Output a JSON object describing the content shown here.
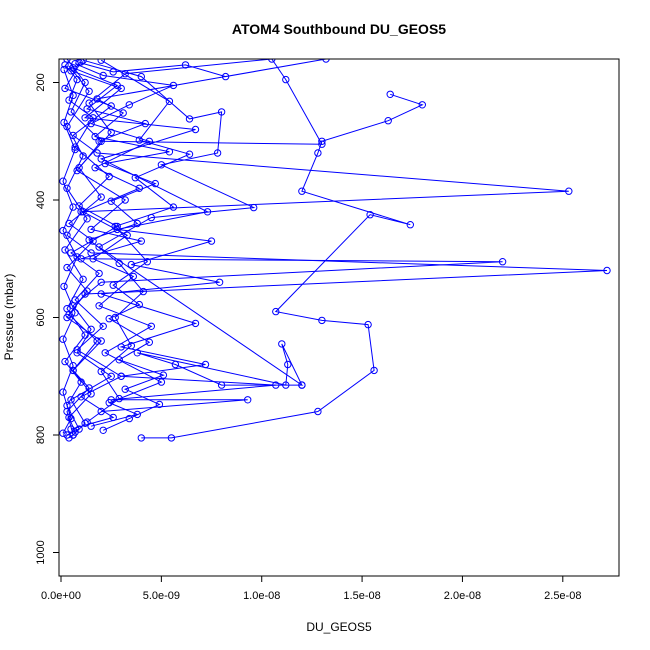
{
  "chart_data": {
    "type": "line",
    "title": "ATOM4 Southbound DU_GEOS5",
    "xlabel": "DU_GEOS5",
    "ylabel": "Pressure (mbar)",
    "xlim": [
      -1e-10,
      2.78e-08
    ],
    "ylim": [
      1040,
      160
    ],
    "y_reversed": true,
    "grid": false,
    "legend": "none",
    "color": "#0000ff",
    "marker": "open-circle",
    "xticks": [
      0,
      5e-09,
      1e-08,
      1.5e-08,
      2e-08,
      2.5e-08
    ],
    "xtick_labels": [
      "0.0e+00",
      "5.0e-09",
      "1.0e-08",
      "1.5e-08",
      "2.0e-08",
      "2.5e-08"
    ],
    "yticks": [
      200,
      400,
      600,
      800,
      1000
    ],
    "ytick_labels": [
      "200",
      "400",
      "600",
      "800",
      "1000"
    ],
    "series": [
      {
        "values": [
          [
            3e-10,
            160
          ],
          [
            1.2e-09,
            200
          ],
          [
            5e-10,
            250
          ],
          [
            2e-09,
            300
          ],
          [
            8e-10,
            350
          ],
          [
            3.2e-09,
            400
          ],
          [
            1.5e-09,
            450
          ],
          [
            4e-09,
            470
          ],
          [
            1e-09,
            500
          ],
          [
            2.2e-08,
            505
          ],
          [
            2e-09,
            540
          ],
          [
            6e-10,
            580
          ],
          [
            1.5e-09,
            620
          ],
          [
            8e-10,
            660
          ],
          [
            2.5e-09,
            700
          ],
          [
            5e-10,
            740
          ],
          [
            1.2e-09,
            780
          ],
          [
            6e-10,
            800
          ]
        ]
      },
      {
        "values": [
          [
            1e-09,
            165
          ],
          [
            2e-10,
            210
          ],
          [
            2.5e-09,
            240
          ],
          [
            6e-10,
            290
          ],
          [
            1.8e-09,
            320
          ],
          [
            2.53e-08,
            385
          ],
          [
            1e-09,
            420
          ],
          [
            3e-10,
            460
          ],
          [
            1.5e-09,
            490
          ],
          [
            2.72e-08,
            520
          ],
          [
            1.2e-09,
            560
          ],
          [
            3e-10,
            600
          ],
          [
            2e-09,
            640
          ],
          [
            6e-10,
            690
          ],
          [
            1.4e-09,
            720
          ],
          [
            3e-10,
            760
          ],
          [
            6e-10,
            800
          ],
          [
            4e-10,
            805
          ]
        ]
      },
      {
        "values": [
          [
            1.64e-08,
            220
          ],
          [
            1.8e-08,
            238
          ],
          [
            1.63e-08,
            265
          ],
          [
            1.3e-08,
            300
          ],
          [
            1.28e-08,
            320
          ],
          [
            1.2e-08,
            385
          ],
          [
            1.74e-08,
            442
          ],
          [
            1.54e-08,
            425
          ],
          [
            1.07e-08,
            590
          ],
          [
            1.3e-08,
            605
          ],
          [
            1.53e-08,
            612
          ],
          [
            1.56e-08,
            690
          ],
          [
            1.28e-08,
            760
          ],
          [
            5.5e-09,
            805
          ],
          [
            4e-09,
            805
          ]
        ]
      },
      {
        "values": [
          [
            5e-10,
            180
          ],
          [
            3e-09,
            210
          ],
          [
            1.2e-09,
            260
          ],
          [
            6.7e-09,
            280
          ],
          [
            2e-09,
            330
          ],
          [
            7.3e-09,
            420
          ],
          [
            2.8e-09,
            450
          ],
          [
            7.5e-09,
            470
          ],
          [
            3.5e-09,
            510
          ],
          [
            7.9e-09,
            540
          ],
          [
            2e-09,
            560
          ],
          [
            6.7e-09,
            610
          ],
          [
            3e-09,
            650
          ],
          [
            7.2e-09,
            680
          ],
          [
            3e-09,
            700
          ],
          [
            1.07e-08,
            715
          ],
          [
            2.5e-09,
            740
          ],
          [
            9.3e-09,
            740
          ],
          [
            2e-09,
            760
          ]
        ]
      },
      {
        "values": [
          [
            2e-10,
            170
          ],
          [
            8e-10,
            195
          ],
          [
            4e-10,
            230
          ],
          [
            1.6e-09,
            260
          ],
          [
            7e-10,
            310
          ],
          [
            2.4e-09,
            360
          ],
          [
            9e-10,
            410
          ],
          [
            2.8e-09,
            445
          ],
          [
            5e-10,
            490
          ],
          [
            1.9e-09,
            525
          ],
          [
            7e-10,
            570
          ],
          [
            2.1e-09,
            615
          ],
          [
            8e-10,
            655
          ],
          [
            3e-09,
            700
          ],
          [
            1e-09,
            735
          ],
          [
            2.6e-09,
            770
          ],
          [
            5e-10,
            790
          ]
        ]
      },
      {
        "values": [
          [
            1.1e-09,
            162
          ],
          [
            4e-09,
            190
          ],
          [
            6.4e-09,
            262
          ],
          [
            8e-09,
            250
          ],
          [
            7.8e-09,
            320
          ],
          [
            5e-09,
            340
          ],
          [
            9.6e-09,
            413
          ],
          [
            4.5e-09,
            430
          ],
          [
            1.9e-09,
            480
          ],
          [
            1.2e-08,
            715
          ],
          [
            8e-09,
            715
          ],
          [
            5.7e-09,
            680
          ],
          [
            3.8e-09,
            660
          ],
          [
            1.12e-08,
            715
          ],
          [
            1.13e-08,
            680
          ],
          [
            1.1e-08,
            645
          ],
          [
            1.2e-08,
            715
          ]
        ]
      },
      {
        "values": [
          [
            6e-10,
            175
          ],
          [
            2.8e-09,
            205
          ],
          [
            1.3e-09,
            245
          ],
          [
            4.2e-09,
            270
          ],
          [
            1.9e-09,
            300
          ],
          [
            1.3e-08,
            305
          ],
          [
            1.12e-08,
            195
          ],
          [
            1.05e-08,
            160
          ],
          [
            3.2e-09,
            185
          ],
          [
            1.4e-09,
            235
          ],
          [
            2.5e-09,
            285
          ],
          [
            9e-10,
            345
          ],
          [
            2e-09,
            395
          ],
          [
            4e-10,
            440
          ],
          [
            1.6e-09,
            470
          ],
          [
            3e-10,
            515
          ],
          [
            1.3e-09,
            555
          ],
          [
            4e-10,
            595
          ],
          [
            1.8e-09,
            640
          ],
          [
            6e-10,
            690
          ],
          [
            1.5e-09,
            730
          ],
          [
            4e-10,
            770
          ],
          [
            7e-10,
            795
          ]
        ]
      },
      {
        "values": [
          [
            7e-10,
            168
          ],
          [
            2.1e-09,
            188
          ],
          [
            5.6e-09,
            205
          ],
          [
            3.4e-09,
            238
          ],
          [
            1.5e-09,
            270
          ],
          [
            4.4e-09,
            300
          ],
          [
            1.7e-09,
            345
          ],
          [
            3.9e-09,
            380
          ],
          [
            1.1e-09,
            420
          ],
          [
            3.3e-09,
            460
          ],
          [
            1.6e-09,
            500
          ],
          [
            3.6e-09,
            530
          ],
          [
            1.9e-09,
            580
          ],
          [
            4.5e-09,
            615
          ],
          [
            2.2e-09,
            660
          ],
          [
            5e-09,
            710
          ],
          [
            2.4e-09,
            745
          ],
          [
            3.8e-09,
            765
          ],
          [
            1.5e-09,
            785
          ]
        ]
      },
      {
        "values": [
          [
            4e-10,
            172
          ],
          [
            1.4e-09,
            215
          ],
          [
            3e-10,
            275
          ],
          [
            1.1e-09,
            325
          ],
          [
            3e-10,
            380
          ],
          [
            1.3e-09,
            432
          ],
          [
            2e-10,
            485
          ],
          [
            1.1e-09,
            535
          ],
          [
            3e-10,
            585
          ],
          [
            1.2e-09,
            630
          ],
          [
            2e-10,
            675
          ],
          [
            1e-09,
            710
          ],
          [
            3e-10,
            750
          ],
          [
            9e-10,
            790
          ],
          [
            3e-10,
            800
          ]
        ]
      },
      {
        "values": [
          [
            9e-10,
            166
          ],
          [
            2.6e-09,
            182
          ],
          [
            6.2e-09,
            170
          ],
          [
            8.2e-09,
            190
          ],
          [
            1.32e-08,
            160
          ],
          [
            1.8e-09,
            228
          ],
          [
            3.1e-09,
            252
          ],
          [
            1.7e-09,
            292
          ],
          [
            5.4e-09,
            318
          ],
          [
            2.2e-09,
            338
          ],
          [
            4.7e-09,
            372
          ],
          [
            2.5e-09,
            402
          ],
          [
            3.8e-09,
            440
          ],
          [
            1.4e-09,
            468
          ],
          [
            2.9e-09,
            508
          ],
          [
            4.1e-09,
            556
          ],
          [
            2.7e-09,
            600
          ],
          [
            3.5e-09,
            648
          ],
          [
            2e-09,
            692
          ],
          [
            2.9e-09,
            738
          ],
          [
            1.3e-09,
            778
          ]
        ]
      },
      {
        "values": [
          [
            1.5e-10,
            178
          ],
          [
            6e-10,
            222
          ],
          [
            1.5e-10,
            268
          ],
          [
            7e-10,
            314
          ],
          [
            1e-10,
            368
          ],
          [
            6e-10,
            412
          ],
          [
            1e-10,
            452
          ],
          [
            8e-10,
            497
          ],
          [
            1.5e-10,
            547
          ],
          [
            7e-10,
            592
          ],
          [
            1e-10,
            637
          ],
          [
            6e-10,
            682
          ],
          [
            1e-10,
            727
          ],
          [
            5e-10,
            772
          ],
          [
            1e-10,
            797
          ]
        ]
      },
      {
        "values": [
          [
            2e-09,
            162
          ],
          [
            5.4e-09,
            232
          ],
          [
            3.9e-09,
            298
          ],
          [
            6.4e-09,
            322
          ],
          [
            3.7e-09,
            362
          ],
          [
            5.6e-09,
            412
          ],
          [
            2.7e-09,
            445
          ],
          [
            4.3e-09,
            505
          ],
          [
            2.6e-09,
            545
          ],
          [
            3.9e-09,
            578
          ],
          [
            2.4e-09,
            602
          ],
          [
            4.4e-09,
            642
          ],
          [
            2.9e-09,
            672
          ],
          [
            5.1e-09,
            698
          ],
          [
            3.2e-09,
            722
          ],
          [
            4.9e-09,
            748
          ],
          [
            3.4e-09,
            772
          ],
          [
            2.1e-09,
            792
          ]
        ]
      }
    ]
  }
}
